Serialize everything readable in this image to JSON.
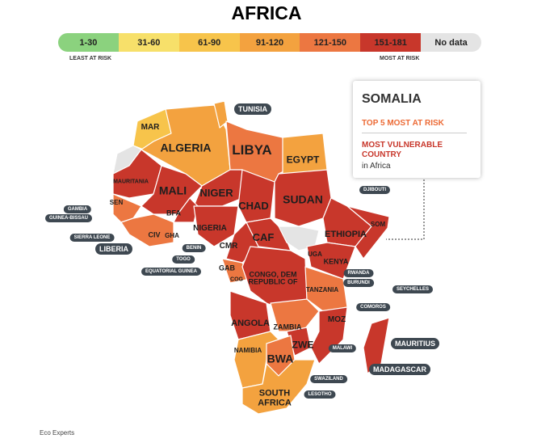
{
  "title": "AFRICA",
  "legend": {
    "items": [
      {
        "label": "1-30",
        "color": "#8bd27e"
      },
      {
        "label": "31-60",
        "color": "#f7e06a"
      },
      {
        "label": "61-90",
        "color": "#f7c44b"
      },
      {
        "label": "91-120",
        "color": "#f3a23f"
      },
      {
        "label": "121-150",
        "color": "#ec7741"
      },
      {
        "label": "151-181",
        "color": "#c8372b"
      },
      {
        "label": "No data",
        "color": "#e4e4e4"
      }
    ],
    "low": "LEAST AT RISK",
    "high": "MOST AT RISK"
  },
  "callout": {
    "country": "SOMALIA",
    "rank": "TOP 5 MOST AT RISK",
    "headline": "MOST VULNERABLE COUNTRY",
    "note": "in Africa"
  },
  "map_labels": [
    "MAR",
    "ALGERIA",
    "LIBYA",
    "EGYPT",
    "MAURITANIA",
    "MALI",
    "NIGER",
    "CHAD",
    "SUDAN",
    "SEN",
    "BFA",
    "NIGERIA",
    "CIV",
    "GHA",
    "CMR",
    "CAF",
    "ETHIOPIA",
    "SOM",
    "UGA",
    "KENYA",
    "GAB",
    "COG",
    "CONGO, DEM REPUBLIC OF",
    "TANZANIA",
    "ANGOLA",
    "ZAMBIA",
    "MOZ",
    "ZWE",
    "NAMIBIA",
    "BWA",
    "SOUTH AFRICA"
  ],
  "pill_labels": [
    "TUNISIA",
    "GAMBIA",
    "GUINEA-BISSAU",
    "SIERRA LEONE",
    "LIBERIA",
    "BENIN",
    "TOGO",
    "EQUATORIAL GUINEA",
    "DJIBOUTI",
    "RWANDA",
    "BURUNDI",
    "SEYCHELLES",
    "COMOROS",
    "MAURITIUS",
    "MALAWI",
    "MADAGASCAR",
    "SWAZILAND",
    "LESOTHO"
  ],
  "source": "Eco Experts"
}
